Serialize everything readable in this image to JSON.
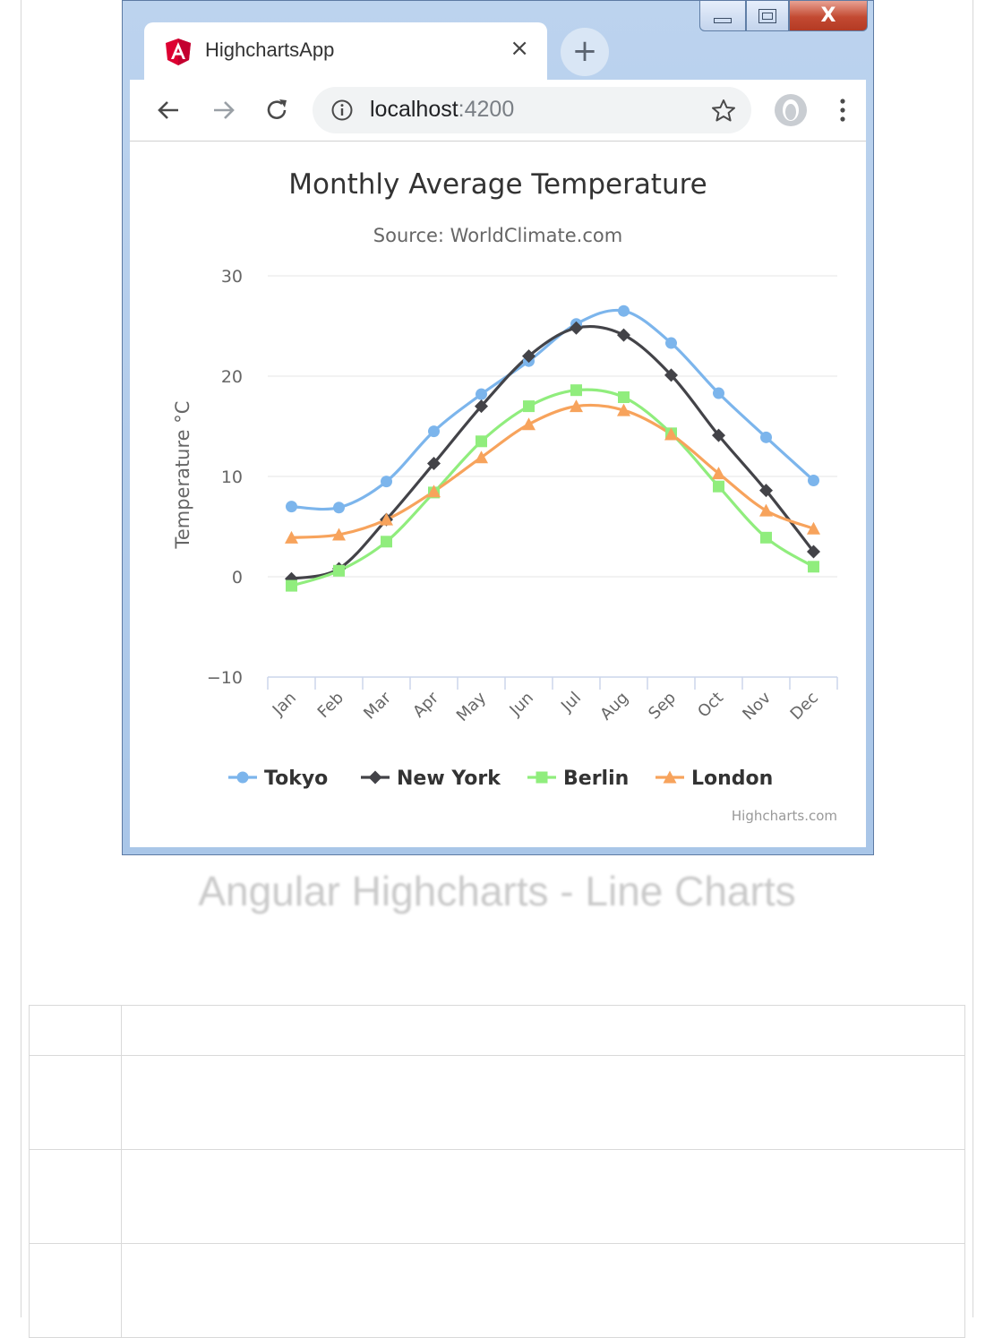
{
  "browser": {
    "tab_title": "HighchartsApp",
    "tab_close": "×",
    "new_tab": "+",
    "url_host": "localhost",
    "url_port": ":4200",
    "win_close": "X"
  },
  "chart_data": {
    "type": "line",
    "title": "Monthly Average Temperature",
    "subtitle": "Source: WorldClimate.com",
    "ylabel": "Temperature °C",
    "xlabel": "",
    "ylim": [
      -10,
      30
    ],
    "yticks": [
      -10,
      0,
      10,
      20,
      30
    ],
    "categories": [
      "Jan",
      "Feb",
      "Mar",
      "Apr",
      "May",
      "Jun",
      "Jul",
      "Aug",
      "Sep",
      "Oct",
      "Nov",
      "Dec"
    ],
    "series": [
      {
        "name": "Tokyo",
        "marker": "circle",
        "color": "#7cb5ec",
        "values": [
          7.0,
          6.9,
          9.5,
          14.5,
          18.2,
          21.5,
          25.2,
          26.5,
          23.3,
          18.3,
          13.9,
          9.6
        ]
      },
      {
        "name": "New York",
        "marker": "diamond",
        "color": "#434348",
        "values": [
          -0.2,
          0.8,
          5.7,
          11.3,
          17.0,
          22.0,
          24.8,
          24.1,
          20.1,
          14.1,
          8.6,
          2.5
        ]
      },
      {
        "name": "Berlin",
        "marker": "square",
        "color": "#90ed7d",
        "values": [
          -0.9,
          0.6,
          3.5,
          8.4,
          13.5,
          17.0,
          18.6,
          17.9,
          14.3,
          9.0,
          3.9,
          1.0
        ]
      },
      {
        "name": "London",
        "marker": "triangle",
        "color": "#f7a35c",
        "values": [
          3.9,
          4.2,
          5.7,
          8.5,
          11.9,
          15.2,
          17.0,
          16.6,
          14.2,
          10.3,
          6.6,
          4.8
        ]
      }
    ],
    "grid": true,
    "legend": "bottom-center",
    "credits": "Highcharts.com"
  },
  "caption": "Angular Highcharts - Line Charts"
}
